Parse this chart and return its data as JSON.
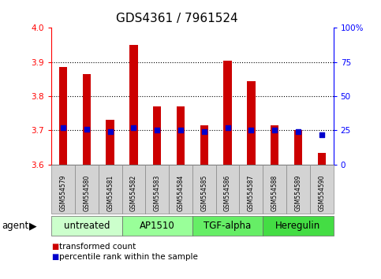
{
  "title": "GDS4361 / 7961524",
  "samples": [
    "GSM554579",
    "GSM554580",
    "GSM554581",
    "GSM554582",
    "GSM554583",
    "GSM554584",
    "GSM554585",
    "GSM554586",
    "GSM554587",
    "GSM554588",
    "GSM554589",
    "GSM554590"
  ],
  "transformed_count": [
    3.885,
    3.865,
    3.73,
    3.95,
    3.77,
    3.77,
    3.715,
    3.905,
    3.845,
    3.715,
    3.7,
    3.635
  ],
  "percentile_rank": [
    27,
    26,
    24,
    27,
    25,
    25,
    24,
    27,
    25,
    25,
    24,
    22
  ],
  "agents": [
    {
      "label": "untreated",
      "start": 0,
      "end": 3,
      "color": "#ccffcc"
    },
    {
      "label": "AP1510",
      "start": 3,
      "end": 6,
      "color": "#99ff99"
    },
    {
      "label": "TGF-alpha",
      "start": 6,
      "end": 9,
      "color": "#66ee66"
    },
    {
      "label": "Heregulin",
      "start": 9,
      "end": 12,
      "color": "#44dd44"
    }
  ],
  "ylim_left": [
    3.6,
    4.0
  ],
  "ylim_right": [
    0,
    100
  ],
  "yticks_left": [
    3.6,
    3.7,
    3.8,
    3.9,
    4.0
  ],
  "yticks_right": [
    0,
    25,
    50,
    75,
    100
  ],
  "ytick_labels_right": [
    "0",
    "25",
    "50",
    "75",
    "100%"
  ],
  "bar_color": "#cc0000",
  "dot_color": "#0000cc",
  "title_fontsize": 11,
  "tick_fontsize": 7.5,
  "sample_fontsize": 5.5,
  "agent_label_fontsize": 8.5,
  "legend_fontsize": 7.5
}
